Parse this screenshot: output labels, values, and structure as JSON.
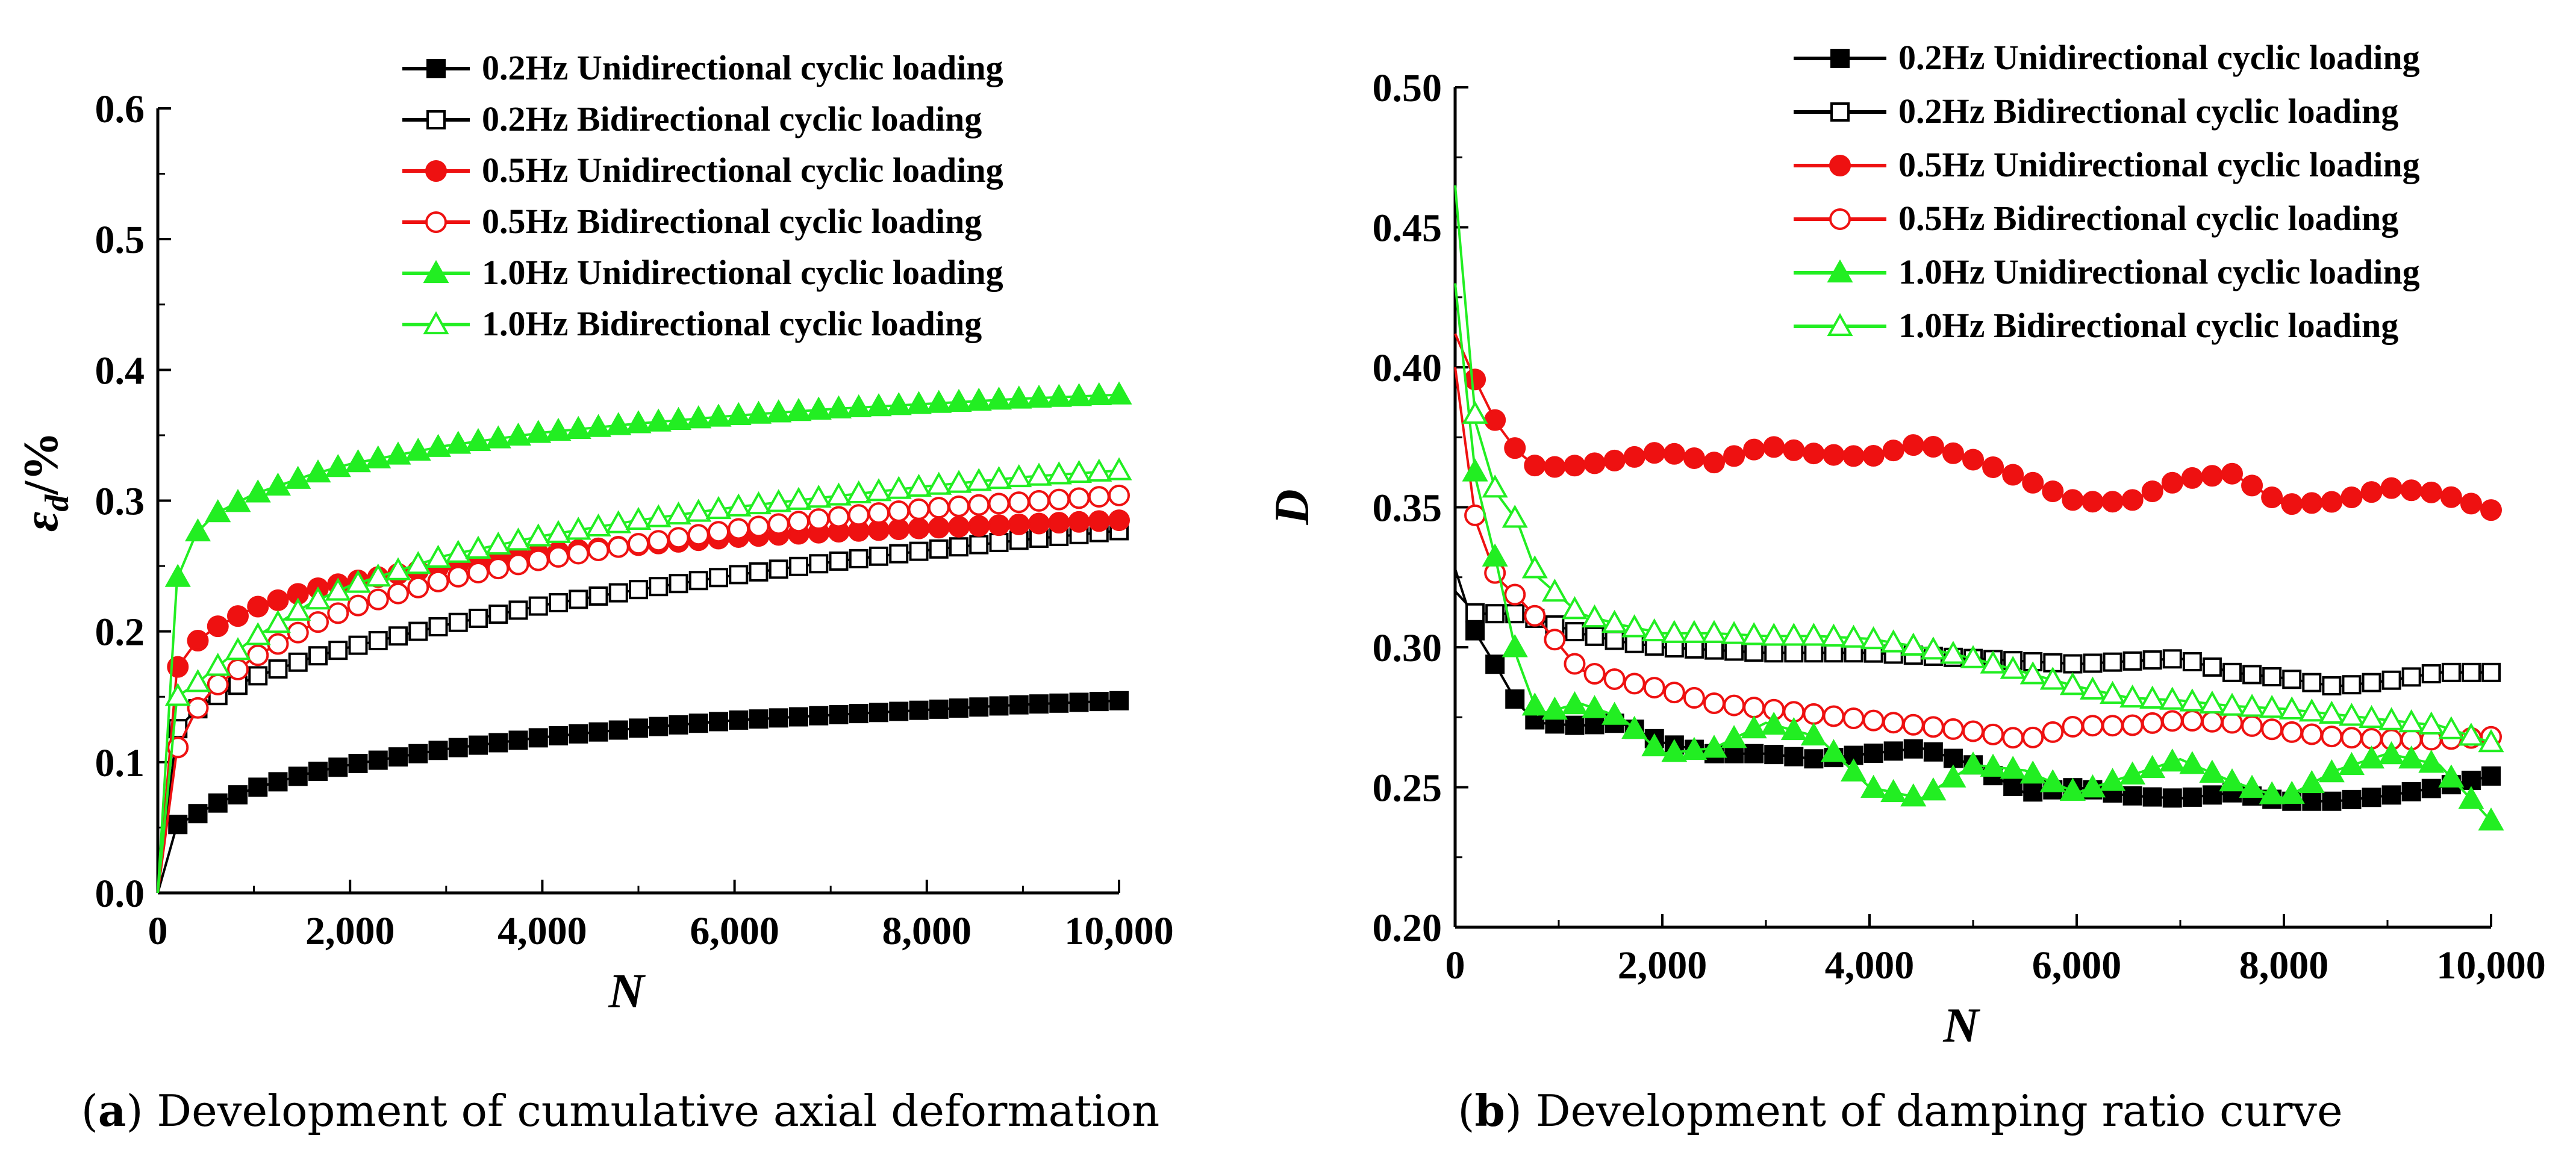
{
  "colors": {
    "black": "#000000",
    "red": "#ee1111",
    "green": "#22ee22"
  },
  "chart_data": [
    {
      "id": "a",
      "type": "line",
      "caption_prefix": "(",
      "caption_letter": "a",
      "caption_text": ") Development of cumulative axial deformation",
      "xlabel": "N",
      "ylabel_main": "ε",
      "ylabel_sub": "d",
      "ylabel_unit": "/%",
      "xlim": [
        0,
        10000
      ],
      "ylim": [
        0,
        0.6
      ],
      "xticks": [
        0,
        2000,
        4000,
        6000,
        8000,
        10000
      ],
      "xtick_labels": [
        "0",
        "2,000",
        "4,000",
        "6,000",
        "8,000",
        "10,000"
      ],
      "yticks": [
        0,
        0.1,
        0.2,
        0.3,
        0.4,
        0.5,
        0.6
      ],
      "ytick_labels": [
        "0.0",
        "0.1",
        "0.2",
        "0.3",
        "0.4",
        "0.5",
        "0.6"
      ],
      "legend_position": "top-right",
      "series": [
        {
          "name": "0.2Hz Unidirectional cyclic loading",
          "color": "#000000",
          "marker": "square",
          "filled": true,
          "x": [
            0,
            200,
            400,
            600,
            1000,
            1600,
            2000,
            3000,
            4000,
            5000,
            6000,
            7000,
            8000,
            9000,
            10000
          ],
          "values": [
            0,
            0.052,
            0.06,
            0.068,
            0.08,
            0.092,
            0.098,
            0.11,
            0.119,
            0.126,
            0.132,
            0.136,
            0.14,
            0.144,
            0.147
          ]
        },
        {
          "name": "0.2Hz Bidirectional cyclic loading",
          "color": "#000000",
          "marker": "square",
          "filled": false,
          "x": [
            0,
            200,
            400,
            600,
            1000,
            1600,
            2000,
            3000,
            4000,
            5000,
            6000,
            7000,
            8000,
            9000,
            10000
          ],
          "values": [
            0,
            0.125,
            0.14,
            0.15,
            0.165,
            0.18,
            0.188,
            0.205,
            0.22,
            0.232,
            0.243,
            0.253,
            0.262,
            0.27,
            0.277
          ]
        },
        {
          "name": "0.5Hz Unidirectional cyclic loading",
          "color": "#ee1111",
          "marker": "circle",
          "filled": true,
          "x": [
            0,
            200,
            400,
            600,
            1000,
            1600,
            2000,
            3000,
            4000,
            5000,
            6000,
            7000,
            8000,
            9000,
            10000
          ],
          "values": [
            0,
            0.172,
            0.192,
            0.203,
            0.218,
            0.232,
            0.238,
            0.25,
            0.26,
            0.266,
            0.272,
            0.276,
            0.279,
            0.282,
            0.285
          ]
        },
        {
          "name": "0.5Hz Bidirectional cyclic loading",
          "color": "#ee1111",
          "marker": "circle",
          "filled": false,
          "x": [
            0,
            200,
            400,
            600,
            1000,
            1600,
            2000,
            3000,
            4000,
            5000,
            6000,
            7000,
            8000,
            9000,
            10000
          ],
          "values": [
            0,
            0.11,
            0.14,
            0.158,
            0.18,
            0.205,
            0.218,
            0.24,
            0.255,
            0.267,
            0.278,
            0.287,
            0.294,
            0.299,
            0.304
          ]
        },
        {
          "name": "1.0Hz Unidirectional cyclic loading",
          "color": "#22ee22",
          "marker": "triangle",
          "filled": true,
          "x": [
            0,
            200,
            400,
            600,
            1000,
            1600,
            2000,
            3000,
            4000,
            5000,
            6000,
            7000,
            8000,
            9000,
            10000
          ],
          "values": [
            0,
            0.24,
            0.275,
            0.29,
            0.305,
            0.32,
            0.328,
            0.342,
            0.352,
            0.359,
            0.365,
            0.37,
            0.374,
            0.378,
            0.381
          ]
        },
        {
          "name": "1.0Hz Bidirectional cyclic loading",
          "color": "#22ee22",
          "marker": "triangle",
          "filled": false,
          "x": [
            0,
            200,
            400,
            600,
            1000,
            1600,
            2000,
            3000,
            4000,
            5000,
            6000,
            7000,
            8000,
            9000,
            10000
          ],
          "values": [
            0,
            0.15,
            0.16,
            0.172,
            0.195,
            0.222,
            0.235,
            0.258,
            0.273,
            0.285,
            0.295,
            0.303,
            0.311,
            0.318,
            0.323
          ]
        }
      ]
    },
    {
      "id": "b",
      "type": "line",
      "caption_prefix": "(",
      "caption_letter": "b",
      "caption_text": ") Development of damping ratio curve",
      "xlabel": "N",
      "ylabel_main": "D",
      "xlim": [
        0,
        10000
      ],
      "ylim": [
        0.2,
        0.5
      ],
      "xticks": [
        0,
        2000,
        4000,
        6000,
        8000,
        10000
      ],
      "xtick_labels": [
        "0",
        "2,000",
        "4,000",
        "6,000",
        "8,000",
        "10,000"
      ],
      "yticks": [
        0.2,
        0.25,
        0.3,
        0.35,
        0.4,
        0.45,
        0.5
      ],
      "ytick_labels": [
        "0.20",
        "0.25",
        "0.30",
        "0.35",
        "0.40",
        "0.45",
        "0.50"
      ],
      "legend_position": "top-right",
      "series": [
        {
          "name": "0.2Hz Unidirectional cyclic loading",
          "color": "#000000",
          "marker": "square",
          "filled": true,
          "x": [
            0,
            200,
            400,
            600,
            800,
            1200,
            1600,
            2000,
            2500,
            3000,
            3500,
            4000,
            4500,
            5000,
            5500,
            6000,
            6500,
            7000,
            7500,
            8000,
            8500,
            9000,
            9500,
            10000
          ],
          "values": [
            0.328,
            0.305,
            0.293,
            0.28,
            0.273,
            0.272,
            0.273,
            0.266,
            0.262,
            0.262,
            0.26,
            0.262,
            0.264,
            0.258,
            0.248,
            0.25,
            0.247,
            0.246,
            0.248,
            0.245,
            0.245,
            0.247,
            0.25,
            0.254
          ]
        },
        {
          "name": "0.2Hz Bidirectional cyclic loading",
          "color": "#000000",
          "marker": "square",
          "filled": false,
          "x": [
            0,
            200,
            400,
            600,
            800,
            1200,
            1600,
            2000,
            2500,
            3000,
            3500,
            4000,
            4500,
            5000,
            5500,
            6000,
            6500,
            7000,
            7500,
            8000,
            8500,
            9000,
            9500,
            10000
          ],
          "values": [
            0.32,
            0.312,
            0.312,
            0.312,
            0.31,
            0.305,
            0.302,
            0.3,
            0.299,
            0.298,
            0.298,
            0.298,
            0.297,
            0.296,
            0.295,
            0.294,
            0.295,
            0.296,
            0.291,
            0.289,
            0.286,
            0.288,
            0.291,
            0.291
          ]
        },
        {
          "name": "0.5Hz Unidirectional cyclic loading",
          "color": "#ee1111",
          "marker": "circle",
          "filled": true,
          "x": [
            0,
            200,
            400,
            600,
            800,
            1200,
            1600,
            2000,
            2500,
            3000,
            3500,
            4000,
            4500,
            5000,
            5500,
            6000,
            6500,
            7000,
            7500,
            8000,
            8500,
            9000,
            9500,
            10000
          ],
          "values": [
            0.412,
            0.395,
            0.38,
            0.37,
            0.364,
            0.365,
            0.367,
            0.37,
            0.366,
            0.372,
            0.369,
            0.368,
            0.373,
            0.367,
            0.36,
            0.352,
            0.352,
            0.36,
            0.362,
            0.351,
            0.352,
            0.357,
            0.355,
            0.349
          ]
        },
        {
          "name": "0.5Hz Bidirectional cyclic loading",
          "color": "#ee1111",
          "marker": "circle",
          "filled": false,
          "x": [
            0,
            200,
            400,
            600,
            800,
            1200,
            1600,
            2000,
            2500,
            3000,
            3500,
            4000,
            4500,
            5000,
            5500,
            6000,
            6500,
            7000,
            7500,
            8000,
            8500,
            9000,
            9500,
            10000
          ],
          "values": [
            0.4,
            0.345,
            0.325,
            0.318,
            0.31,
            0.292,
            0.288,
            0.285,
            0.28,
            0.278,
            0.276,
            0.274,
            0.272,
            0.27,
            0.267,
            0.272,
            0.272,
            0.274,
            0.273,
            0.27,
            0.268,
            0.267,
            0.267,
            0.268
          ]
        },
        {
          "name": "1.0Hz Unidirectional cyclic loading",
          "color": "#22ee22",
          "marker": "triangle",
          "filled": true,
          "x": [
            0,
            200,
            400,
            600,
            800,
            1200,
            1600,
            2000,
            2500,
            3000,
            3500,
            4000,
            4500,
            5000,
            5500,
            6000,
            6500,
            7000,
            7500,
            8000,
            8500,
            9000,
            9500,
            10000
          ],
          "values": [
            0.43,
            0.36,
            0.33,
            0.296,
            0.276,
            0.28,
            0.275,
            0.262,
            0.264,
            0.273,
            0.268,
            0.25,
            0.246,
            0.258,
            0.256,
            0.248,
            0.254,
            0.26,
            0.252,
            0.246,
            0.256,
            0.262,
            0.258,
            0.238
          ]
        },
        {
          "name": "1.0Hz Bidirectional cyclic loading",
          "color": "#22ee22",
          "marker": "triangle",
          "filled": false,
          "x": [
            0,
            200,
            400,
            600,
            800,
            1200,
            1600,
            2000,
            2500,
            3000,
            3500,
            4000,
            4500,
            5000,
            5500,
            6000,
            6500,
            7000,
            7500,
            8000,
            8500,
            9000,
            9500,
            10000
          ],
          "values": [
            0.465,
            0.38,
            0.355,
            0.345,
            0.325,
            0.312,
            0.308,
            0.305,
            0.305,
            0.304,
            0.304,
            0.303,
            0.3,
            0.296,
            0.291,
            0.286,
            0.282,
            0.281,
            0.279,
            0.278,
            0.276,
            0.274,
            0.272,
            0.266
          ]
        }
      ]
    }
  ]
}
